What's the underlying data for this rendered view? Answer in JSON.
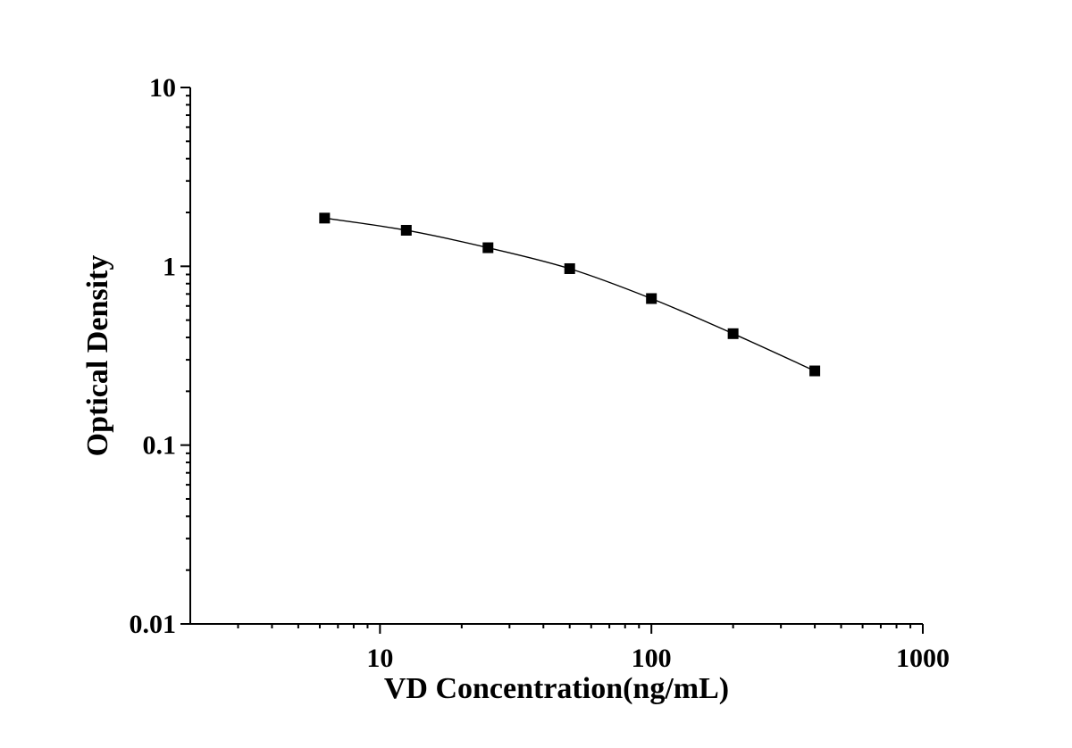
{
  "chart_data": {
    "type": "scatter",
    "xlabel": "VD Concentration(ng/mL)",
    "ylabel": "Optical Density",
    "xscale": "log",
    "yscale": "log",
    "xlim": [
      2,
      1000
    ],
    "ylim": [
      0.01,
      10
    ],
    "x_ticks": [
      10,
      100,
      1000
    ],
    "x_tick_labels": [
      "10",
      "100",
      "1000"
    ],
    "y_ticks": [
      0.01,
      0.1,
      1,
      10
    ],
    "y_tick_labels": [
      "0.01",
      "0.1",
      "1",
      "10"
    ],
    "grid": false,
    "legend": "none",
    "marker": "square",
    "series": [
      {
        "x": [
          6.25,
          12.5,
          25,
          50,
          100,
          200,
          400
        ],
        "y": [
          1.86,
          1.59,
          1.27,
          0.97,
          0.66,
          0.42,
          0.26
        ],
        "color": "#000000",
        "fit_curve": true
      }
    ]
  }
}
